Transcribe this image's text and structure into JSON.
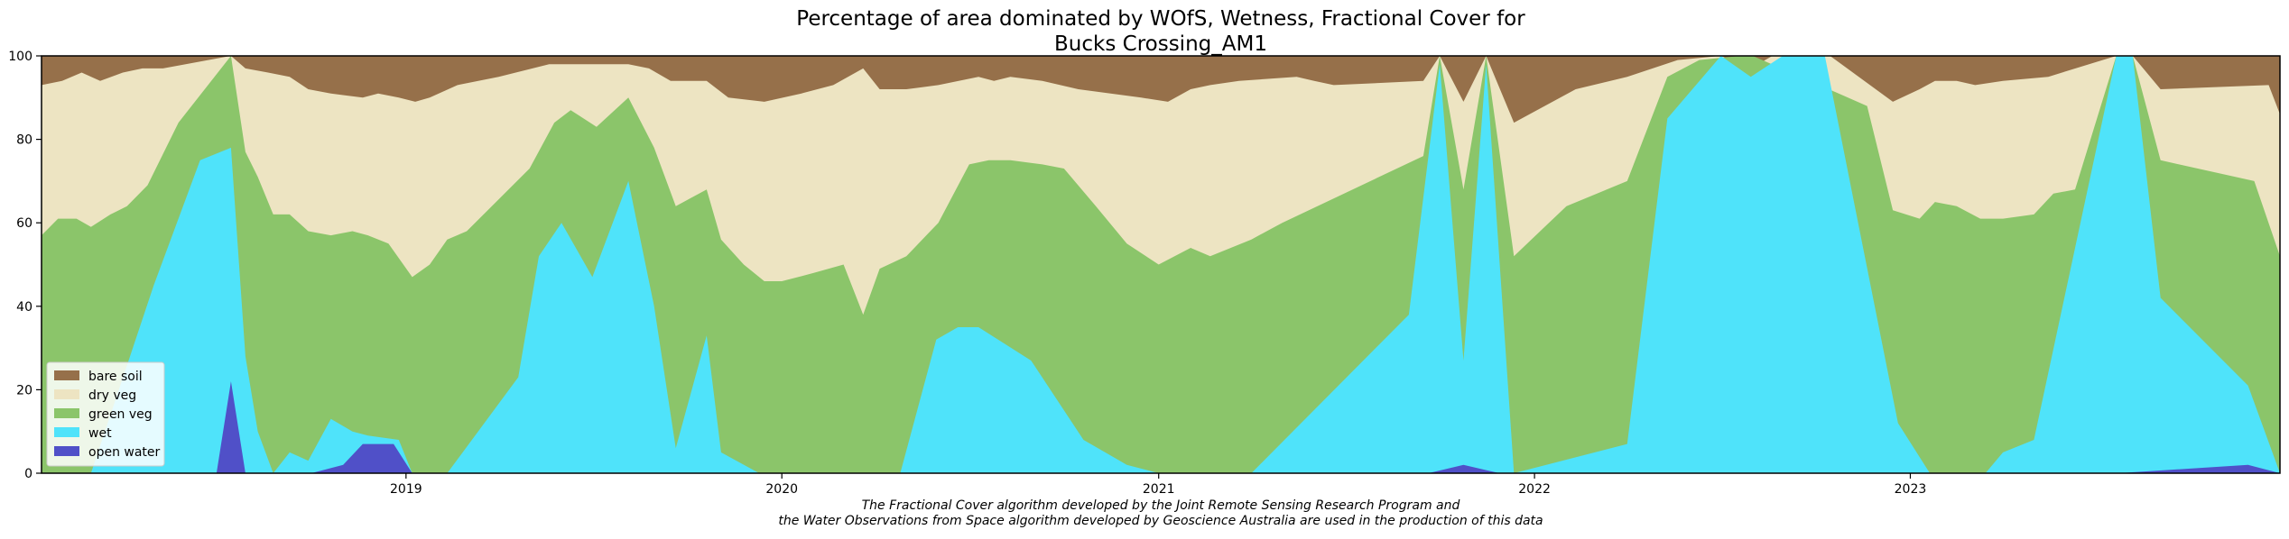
{
  "chart_data": {
    "type": "area",
    "stacked": true,
    "title": "Percentage of area dominated by WOfS, Wetness, Fractional Cover for\nBucks Crossing_AM1",
    "xlabel": "",
    "ylabel": "",
    "ylim": [
      0,
      100
    ],
    "xlim": [
      "2018-01-12",
      "2023-12-26"
    ],
    "yticks": [
      0,
      20,
      40,
      60,
      80,
      100
    ],
    "xticks": [
      {
        "date": "2019-01-01",
        "label": "2019"
      },
      {
        "date": "2020-01-01",
        "label": "2020"
      },
      {
        "date": "2021-01-01",
        "label": "2021"
      },
      {
        "date": "2022-01-01",
        "label": "2022"
      },
      {
        "date": "2023-01-01",
        "label": "2023"
      }
    ],
    "grid": false,
    "legend_position": "lower-left",
    "caption_lines": [
      "The Fractional Cover algorithm developed by the Joint Remote Sensing Research Program and",
      "the Water Observations from Space algorithm developed by Geoscience Australia are used in the production of this data"
    ],
    "series": [
      {
        "name": "open water",
        "color": "#5050c8",
        "values": [
          [
            "2018-01-12",
            0
          ],
          [
            "2018-06-15",
            0
          ],
          [
            "2018-07-01",
            0
          ],
          [
            "2018-07-15",
            22
          ],
          [
            "2018-07-29",
            0
          ],
          [
            "2018-10-01",
            0
          ],
          [
            "2018-11-01",
            2
          ],
          [
            "2018-11-20",
            7
          ],
          [
            "2018-12-20",
            7
          ],
          [
            "2019-01-07",
            0
          ],
          [
            "2021-09-20",
            0
          ],
          [
            "2021-10-24",
            2
          ],
          [
            "2021-11-28",
            0
          ],
          [
            "2023-07-22",
            0
          ],
          [
            "2023-11-25",
            2
          ],
          [
            "2023-12-26",
            0
          ]
        ]
      },
      {
        "name": "wet",
        "color": "#4fe3fa",
        "values": [
          [
            "2018-01-12",
            0
          ],
          [
            "2018-03-01",
            0
          ],
          [
            "2018-05-01",
            45
          ],
          [
            "2018-06-15",
            75
          ],
          [
            "2018-07-15",
            78
          ],
          [
            "2018-07-29",
            28
          ],
          [
            "2018-08-10",
            10
          ],
          [
            "2018-08-25",
            0
          ],
          [
            "2018-09-10",
            5
          ],
          [
            "2018-09-28",
            3
          ],
          [
            "2018-10-20",
            13
          ],
          [
            "2018-11-10",
            10
          ],
          [
            "2018-11-25",
            9
          ],
          [
            "2018-12-25",
            8
          ],
          [
            "2019-01-07",
            0
          ],
          [
            "2019-02-10",
            0
          ],
          [
            "2019-04-20",
            23
          ],
          [
            "2019-05-10",
            52
          ],
          [
            "2019-06-01",
            60
          ],
          [
            "2019-07-01",
            47
          ],
          [
            "2019-08-05",
            70
          ],
          [
            "2019-08-30",
            40
          ],
          [
            "2019-09-20",
            6
          ],
          [
            "2019-10-20",
            33
          ],
          [
            "2019-11-03",
            5
          ],
          [
            "2019-12-10",
            0
          ],
          [
            "2020-04-25",
            0
          ],
          [
            "2020-05-30",
            32
          ],
          [
            "2020-06-20",
            35
          ],
          [
            "2020-07-10",
            35
          ],
          [
            "2020-08-30",
            27
          ],
          [
            "2020-10-20",
            8
          ],
          [
            "2020-12-01",
            2
          ],
          [
            "2021-01-01",
            0
          ],
          [
            "2021-04-01",
            0
          ],
          [
            "2021-09-01",
            38
          ],
          [
            "2021-10-01",
            98
          ],
          [
            "2021-10-24",
            27
          ],
          [
            "2021-11-15",
            98
          ],
          [
            "2021-12-12",
            0
          ],
          [
            "2022-04-01",
            7
          ],
          [
            "2022-05-10",
            85
          ],
          [
            "2022-07-01",
            100
          ],
          [
            "2022-07-30",
            95
          ],
          [
            "2022-08-30",
            100
          ],
          [
            "2022-10-10",
            100
          ],
          [
            "2022-12-20",
            12
          ],
          [
            "2023-01-20",
            0
          ],
          [
            "2023-03-15",
            0
          ],
          [
            "2023-04-01",
            5
          ],
          [
            "2023-05-01",
            8
          ],
          [
            "2023-07-20",
            100
          ],
          [
            "2023-08-05",
            100
          ],
          [
            "2023-09-01",
            42
          ],
          [
            "2023-11-25",
            21
          ],
          [
            "2023-12-26",
            0
          ]
        ]
      },
      {
        "name": "green veg",
        "color": "#8bc56a",
        "values": [
          [
            "2018-01-12",
            57
          ],
          [
            "2018-01-28",
            61
          ],
          [
            "2018-02-15",
            61
          ],
          [
            "2018-03-01",
            59
          ],
          [
            "2018-03-20",
            62
          ],
          [
            "2018-04-05",
            64
          ],
          [
            "2018-04-25",
            69
          ],
          [
            "2018-05-25",
            84
          ],
          [
            "2018-07-15",
            100
          ],
          [
            "2018-07-29",
            77
          ],
          [
            "2018-08-10",
            71
          ],
          [
            "2018-08-25",
            62
          ],
          [
            "2018-09-10",
            62
          ],
          [
            "2018-09-28",
            58
          ],
          [
            "2018-10-20",
            57
          ],
          [
            "2018-11-10",
            58
          ],
          [
            "2018-11-25",
            57
          ],
          [
            "2018-12-15",
            55
          ],
          [
            "2019-01-07",
            47
          ],
          [
            "2019-01-24",
            50
          ],
          [
            "2019-02-10",
            56
          ],
          [
            "2019-03-01",
            58
          ],
          [
            "2019-05-01",
            73
          ],
          [
            "2019-05-25",
            84
          ],
          [
            "2019-06-10",
            87
          ],
          [
            "2019-07-05",
            83
          ],
          [
            "2019-08-05",
            90
          ],
          [
            "2019-08-30",
            78
          ],
          [
            "2019-09-20",
            64
          ],
          [
            "2019-10-20",
            68
          ],
          [
            "2019-11-03",
            56
          ],
          [
            "2019-11-25",
            50
          ],
          [
            "2019-12-15",
            46
          ],
          [
            "2020-01-01",
            46
          ],
          [
            "2020-02-01",
            48
          ],
          [
            "2020-03-01",
            50
          ],
          [
            "2020-03-20",
            38
          ],
          [
            "2020-04-05",
            49
          ],
          [
            "2020-05-01",
            52
          ],
          [
            "2020-06-01",
            60
          ],
          [
            "2020-07-01",
            74
          ],
          [
            "2020-07-20",
            75
          ],
          [
            "2020-08-10",
            75
          ],
          [
            "2020-09-10",
            74
          ],
          [
            "2020-10-01",
            73
          ],
          [
            "2020-11-01",
            64
          ],
          [
            "2020-12-01",
            55
          ],
          [
            "2021-01-01",
            50
          ],
          [
            "2021-02-01",
            54
          ],
          [
            "2021-02-20",
            52
          ],
          [
            "2021-04-01",
            56
          ],
          [
            "2021-05-01",
            60
          ],
          [
            "2021-09-15",
            76
          ],
          [
            "2021-10-01",
            100
          ],
          [
            "2021-10-24",
            68
          ],
          [
            "2021-11-15",
            100
          ],
          [
            "2021-12-12",
            52
          ],
          [
            "2022-02-01",
            64
          ],
          [
            "2022-04-01",
            70
          ],
          [
            "2022-05-10",
            95
          ],
          [
            "2022-06-10",
            99
          ],
          [
            "2022-07-20",
            100
          ],
          [
            "2022-08-01",
            100
          ],
          [
            "2022-11-20",
            88
          ],
          [
            "2022-12-15",
            63
          ],
          [
            "2023-01-10",
            61
          ],
          [
            "2023-01-25",
            65
          ],
          [
            "2023-02-15",
            64
          ],
          [
            "2023-03-10",
            61
          ],
          [
            "2023-04-01",
            61
          ],
          [
            "2023-05-01",
            62
          ],
          [
            "2023-05-20",
            67
          ],
          [
            "2023-06-10",
            68
          ],
          [
            "2023-07-20",
            100
          ],
          [
            "2023-08-05",
            100
          ],
          [
            "2023-09-01",
            75
          ],
          [
            "2023-12-01",
            70
          ],
          [
            "2023-12-26",
            52
          ]
        ]
      },
      {
        "name": "dry veg",
        "color": "#ede4c2",
        "values": [
          [
            "2018-01-12",
            93
          ],
          [
            "2018-02-01",
            94
          ],
          [
            "2018-02-20",
            96
          ],
          [
            "2018-03-10",
            94
          ],
          [
            "2018-04-01",
            96
          ],
          [
            "2018-04-20",
            97
          ],
          [
            "2018-05-10",
            97
          ],
          [
            "2018-06-01",
            98
          ],
          [
            "2018-07-15",
            100
          ],
          [
            "2018-07-29",
            97
          ],
          [
            "2018-08-20",
            96
          ],
          [
            "2018-09-10",
            95
          ],
          [
            "2018-09-28",
            92
          ],
          [
            "2018-10-20",
            91
          ],
          [
            "2018-11-20",
            90
          ],
          [
            "2018-12-05",
            91
          ],
          [
            "2018-12-25",
            90
          ],
          [
            "2019-01-10",
            89
          ],
          [
            "2019-01-24",
            90
          ],
          [
            "2019-02-20",
            93
          ],
          [
            "2019-04-01",
            95
          ],
          [
            "2019-05-20",
            98
          ],
          [
            "2019-06-10",
            98
          ],
          [
            "2019-07-10",
            98
          ],
          [
            "2019-08-05",
            98
          ],
          [
            "2019-08-25",
            97
          ],
          [
            "2019-09-15",
            94
          ],
          [
            "2019-10-20",
            94
          ],
          [
            "2019-11-10",
            90
          ],
          [
            "2019-12-15",
            89
          ],
          [
            "2020-01-20",
            91
          ],
          [
            "2020-02-20",
            93
          ],
          [
            "2020-03-20",
            97
          ],
          [
            "2020-04-05",
            92
          ],
          [
            "2020-05-01",
            92
          ],
          [
            "2020-06-01",
            93
          ],
          [
            "2020-07-10",
            95
          ],
          [
            "2020-07-25",
            94
          ],
          [
            "2020-08-10",
            95
          ],
          [
            "2020-09-10",
            94
          ],
          [
            "2020-10-15",
            92
          ],
          [
            "2020-12-15",
            90
          ],
          [
            "2021-01-10",
            89
          ],
          [
            "2021-02-01",
            92
          ],
          [
            "2021-02-20",
            93
          ],
          [
            "2021-03-20",
            94
          ],
          [
            "2021-05-15",
            95
          ],
          [
            "2021-06-01",
            94
          ],
          [
            "2021-06-20",
            93
          ],
          [
            "2021-09-15",
            94
          ],
          [
            "2021-10-01",
            100
          ],
          [
            "2021-10-24",
            89
          ],
          [
            "2021-11-15",
            100
          ],
          [
            "2021-12-12",
            84
          ],
          [
            "2022-02-10",
            92
          ],
          [
            "2022-04-01",
            95
          ],
          [
            "2022-05-20",
            99
          ],
          [
            "2022-07-01",
            100
          ],
          [
            "2022-07-30",
            97
          ],
          [
            "2022-08-20",
            100
          ],
          [
            "2022-10-15",
            100
          ],
          [
            "2022-12-15",
            89
          ],
          [
            "2023-01-10",
            92
          ],
          [
            "2023-01-25",
            94
          ],
          [
            "2023-02-15",
            94
          ],
          [
            "2023-03-05",
            93
          ],
          [
            "2023-04-01",
            94
          ],
          [
            "2023-05-15",
            95
          ],
          [
            "2023-07-20",
            100
          ],
          [
            "2023-08-05",
            100
          ],
          [
            "2023-09-01",
            92
          ],
          [
            "2023-12-15",
            93
          ],
          [
            "2023-12-26",
            86
          ]
        ]
      },
      {
        "name": "bare soil",
        "color": "#96704a",
        "values": [
          [
            "2018-01-12",
            100
          ],
          [
            "2023-12-26",
            100
          ]
        ]
      }
    ]
  }
}
